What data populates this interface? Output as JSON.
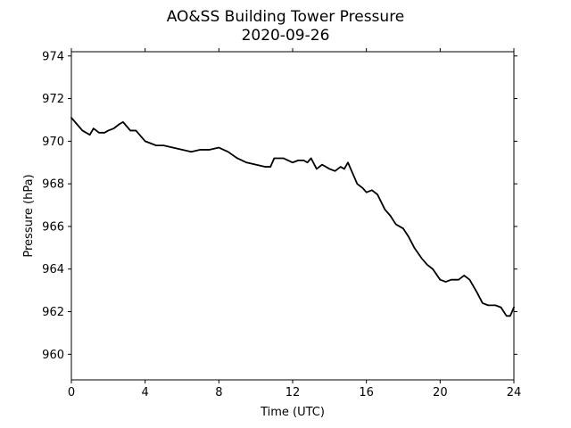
{
  "chart_data": {
    "type": "line",
    "title": "AO&SS Building Tower Pressure",
    "subtitle": "2020-09-26",
    "xlabel": "Time (UTC)",
    "ylabel": "Pressure (hPa)",
    "xlim": [
      0,
      24
    ],
    "ylim": [
      958.8,
      974.2
    ],
    "xticks": [
      0,
      4,
      8,
      12,
      16,
      20,
      24
    ],
    "yticks": [
      960,
      962,
      964,
      966,
      968,
      970,
      972,
      974
    ],
    "grid": false,
    "line_color": "#000000",
    "series": [
      {
        "x": [
          0,
          0.3,
          0.6,
          0.8,
          1.0,
          1.2,
          1.5,
          1.8,
          2.0,
          2.3,
          2.6,
          2.8,
          3.0,
          3.2,
          3.5,
          3.8,
          4.0,
          4.3,
          4.6,
          5.0,
          5.5,
          6.0,
          6.5,
          7.0,
          7.5,
          8.0,
          8.5,
          9.0,
          9.5,
          10.0,
          10.5,
          10.8,
          11.0,
          11.5,
          12.0,
          12.3,
          12.6,
          12.8,
          13.0,
          13.3,
          13.6,
          14.0,
          14.3,
          14.6,
          14.8,
          15.0,
          15.2,
          15.5,
          15.8,
          16.0,
          16.3,
          16.6,
          17.0,
          17.3,
          17.6,
          18.0,
          18.3,
          18.6,
          19.0,
          19.3,
          19.6,
          20.0,
          20.3,
          20.6,
          21.0,
          21.3,
          21.6,
          22.0,
          22.3,
          22.6,
          23.0,
          23.3,
          23.6,
          23.8,
          24.0
        ],
        "y": [
          971.1,
          970.8,
          970.5,
          970.4,
          970.3,
          970.6,
          970.4,
          970.4,
          970.5,
          970.6,
          970.8,
          970.9,
          970.7,
          970.5,
          970.5,
          970.2,
          970.0,
          969.9,
          969.8,
          969.8,
          969.7,
          969.6,
          969.5,
          969.6,
          969.6,
          969.7,
          969.5,
          969.2,
          969.0,
          968.9,
          968.8,
          968.8,
          969.2,
          969.2,
          969.0,
          969.1,
          969.1,
          969.0,
          969.2,
          968.7,
          968.9,
          968.7,
          968.6,
          968.8,
          968.7,
          969.0,
          968.6,
          968.0,
          967.8,
          967.6,
          967.7,
          967.5,
          966.8,
          966.5,
          966.1,
          965.9,
          965.5,
          965.0,
          964.5,
          964.2,
          964.0,
          963.5,
          963.4,
          963.5,
          963.5,
          963.7,
          963.5,
          962.9,
          962.4,
          962.3,
          962.3,
          962.2,
          961.8,
          961.8,
          962.2
        ]
      }
    ]
  }
}
